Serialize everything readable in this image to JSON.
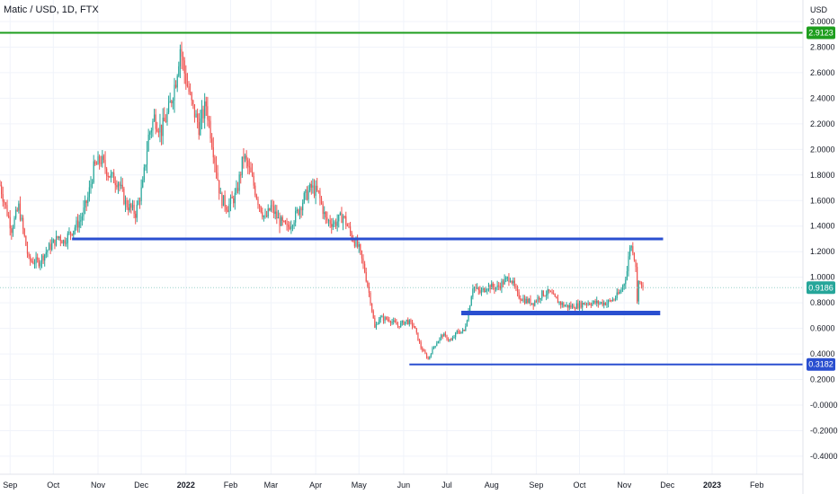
{
  "title": "Matic / USD, 1D, FTX",
  "currency": "USD",
  "colors": {
    "up": "#26a69a",
    "down": "#ef5350",
    "support_line": "#2a4fd0",
    "resistance_line": "#1e9e1e",
    "grid": "#f0f3fa",
    "price_badge": "#26a69a"
  },
  "chart_data": {
    "type": "candlestick",
    "title": "Matic / USD, 1D, FTX",
    "x_range": [
      "2021-08-25",
      "2023-03-05"
    ],
    "ylim": [
      -0.45,
      3.05
    ],
    "grid": true,
    "y_ticks": [
      "3.0000",
      "2.8000",
      "2.6000",
      "2.4000",
      "2.2000",
      "2.0000",
      "1.8000",
      "1.6000",
      "1.4000",
      "1.2000",
      "1.0000",
      "0.8000",
      "0.6000",
      "0.4000",
      "0.2000",
      "-0.0000",
      "-0.2000",
      "-0.4000"
    ],
    "y_tick_values": [
      3.0,
      2.8,
      2.6,
      2.4,
      2.2,
      2.0,
      1.8,
      1.6,
      1.4,
      1.2,
      1.0,
      0.8,
      0.6,
      0.4,
      0.2,
      0.0,
      -0.2,
      -0.4
    ],
    "x_ticks": [
      {
        "label": "Sep",
        "date": "2021-09-01",
        "bold": false
      },
      {
        "label": "Oct",
        "date": "2021-10-01",
        "bold": false
      },
      {
        "label": "Nov",
        "date": "2021-11-01",
        "bold": false
      },
      {
        "label": "Dec",
        "date": "2021-12-01",
        "bold": false
      },
      {
        "label": "2022",
        "date": "2022-01-01",
        "bold": true
      },
      {
        "label": "Feb",
        "date": "2022-02-01",
        "bold": false
      },
      {
        "label": "Mar",
        "date": "2022-03-01",
        "bold": false
      },
      {
        "label": "Apr",
        "date": "2022-04-01",
        "bold": false
      },
      {
        "label": "May",
        "date": "2022-05-01",
        "bold": false
      },
      {
        "label": "Jun",
        "date": "2022-06-01",
        "bold": false
      },
      {
        "label": "Jul",
        "date": "2022-07-01",
        "bold": false
      },
      {
        "label": "Aug",
        "date": "2022-08-01",
        "bold": false
      },
      {
        "label": "Sep",
        "date": "2022-09-01",
        "bold": false
      },
      {
        "label": "Oct",
        "date": "2022-10-01",
        "bold": false
      },
      {
        "label": "Nov",
        "date": "2022-11-01",
        "bold": false
      },
      {
        "label": "Dec",
        "date": "2022-12-01",
        "bold": false
      },
      {
        "label": "2023",
        "date": "2023-01-01",
        "bold": true
      },
      {
        "label": "Feb",
        "date": "2023-02-01",
        "bold": false
      }
    ],
    "price_anchors": [
      [
        "2021-08-25",
        1.72
      ],
      [
        "2021-09-02",
        1.38
      ],
      [
        "2021-09-07",
        1.55
      ],
      [
        "2021-09-14",
        1.13
      ],
      [
        "2021-09-21",
        1.12
      ],
      [
        "2021-09-28",
        1.23
      ],
      [
        "2021-10-05",
        1.32
      ],
      [
        "2021-10-08",
        1.28
      ],
      [
        "2021-10-15",
        1.38
      ],
      [
        "2021-10-20",
        1.45
      ],
      [
        "2021-10-25",
        1.62
      ],
      [
        "2021-10-29",
        1.85
      ],
      [
        "2021-11-03",
        1.92
      ],
      [
        "2021-11-10",
        1.78
      ],
      [
        "2021-11-15",
        1.75
      ],
      [
        "2021-11-20",
        1.58
      ],
      [
        "2021-11-27",
        1.5
      ],
      [
        "2021-12-02",
        1.72
      ],
      [
        "2021-12-06",
        2.1
      ],
      [
        "2021-12-10",
        2.25
      ],
      [
        "2021-12-15",
        2.15
      ],
      [
        "2021-12-20",
        2.3
      ],
      [
        "2021-12-25",
        2.55
      ],
      [
        "2021-12-28",
        2.8
      ],
      [
        "2021-12-31",
        2.6
      ],
      [
        "2022-01-05",
        2.35
      ],
      [
        "2022-01-10",
        2.18
      ],
      [
        "2022-01-15",
        2.35
      ],
      [
        "2022-01-20",
        2.0
      ],
      [
        "2022-01-25",
        1.62
      ],
      [
        "2022-01-30",
        1.55
      ],
      [
        "2022-02-05",
        1.65
      ],
      [
        "2022-02-10",
        1.95
      ],
      [
        "2022-02-15",
        1.8
      ],
      [
        "2022-02-20",
        1.6
      ],
      [
        "2022-02-25",
        1.45
      ],
      [
        "2022-03-01",
        1.55
      ],
      [
        "2022-03-06",
        1.45
      ],
      [
        "2022-03-12",
        1.38
      ],
      [
        "2022-03-18",
        1.48
      ],
      [
        "2022-03-24",
        1.62
      ],
      [
        "2022-03-29",
        1.7
      ],
      [
        "2022-04-03",
        1.65
      ],
      [
        "2022-04-08",
        1.45
      ],
      [
        "2022-04-14",
        1.42
      ],
      [
        "2022-04-20",
        1.48
      ],
      [
        "2022-04-26",
        1.32
      ],
      [
        "2022-05-01",
        1.22
      ],
      [
        "2022-05-05",
        1.05
      ],
      [
        "2022-05-09",
        0.82
      ],
      [
        "2022-05-12",
        0.6
      ],
      [
        "2022-05-15",
        0.68
      ],
      [
        "2022-05-22",
        0.67
      ],
      [
        "2022-05-28",
        0.62
      ],
      [
        "2022-06-03",
        0.66
      ],
      [
        "2022-06-08",
        0.62
      ],
      [
        "2022-06-13",
        0.45
      ],
      [
        "2022-06-18",
        0.36
      ],
      [
        "2022-06-22",
        0.46
      ],
      [
        "2022-06-28",
        0.55
      ],
      [
        "2022-07-04",
        0.5
      ],
      [
        "2022-07-08",
        0.57
      ],
      [
        "2022-07-13",
        0.58
      ],
      [
        "2022-07-16",
        0.73
      ],
      [
        "2022-07-19",
        0.93
      ],
      [
        "2022-07-24",
        0.88
      ],
      [
        "2022-07-29",
        0.93
      ],
      [
        "2022-08-05",
        0.92
      ],
      [
        "2022-08-10",
        0.97
      ],
      [
        "2022-08-14",
        1.0
      ],
      [
        "2022-08-19",
        0.86
      ],
      [
        "2022-08-24",
        0.82
      ],
      [
        "2022-08-30",
        0.8
      ],
      [
        "2022-09-05",
        0.87
      ],
      [
        "2022-09-10",
        0.88
      ],
      [
        "2022-09-15",
        0.82
      ],
      [
        "2022-09-20",
        0.78
      ],
      [
        "2022-09-25",
        0.77
      ],
      [
        "2022-09-30",
        0.78
      ],
      [
        "2022-10-05",
        0.8
      ],
      [
        "2022-10-10",
        0.8
      ],
      [
        "2022-10-15",
        0.8
      ],
      [
        "2022-10-20",
        0.8
      ],
      [
        "2022-10-25",
        0.83
      ],
      [
        "2022-10-29",
        0.88
      ],
      [
        "2022-11-01",
        0.96
      ],
      [
        "2022-11-03",
        1.05
      ],
      [
        "2022-11-05",
        1.25
      ],
      [
        "2022-11-07",
        1.22
      ],
      [
        "2022-11-09",
        1.1
      ],
      [
        "2022-11-10",
        0.8
      ],
      [
        "2022-11-11",
        1.0
      ],
      [
        "2022-11-13",
        0.92
      ],
      [
        "2022-11-14",
        0.9186
      ]
    ],
    "horizontal_lines": [
      {
        "name": "top-resistance",
        "price": 2.9123,
        "from": "2021-08-01",
        "to": "2023-03-05",
        "color": "#1e9e1e",
        "width": 2
      },
      {
        "name": "upper-support",
        "price": 1.3,
        "from": "2021-10-14",
        "to": "2022-11-28",
        "color": "#2a4fd0",
        "width": 3
      },
      {
        "name": "mid-support",
        "price": 0.72,
        "from": "2022-07-11",
        "to": "2022-11-26",
        "color": "#2a4fd0",
        "width": 5
      },
      {
        "name": "bottom-support",
        "price": 0.3182,
        "from": "2022-06-05",
        "to": "2023-03-05",
        "color": "#2a4fd0",
        "width": 2
      }
    ],
    "price_labels": [
      {
        "value": "2.9123",
        "price": 2.9123,
        "color": "#1e9e1e"
      },
      {
        "value": "0.9186",
        "price": 0.9186,
        "color": "#26a69a"
      },
      {
        "value": "0.3182",
        "price": 0.3182,
        "color": "#2a4fd0"
      }
    ],
    "current_price": 0.9186
  }
}
